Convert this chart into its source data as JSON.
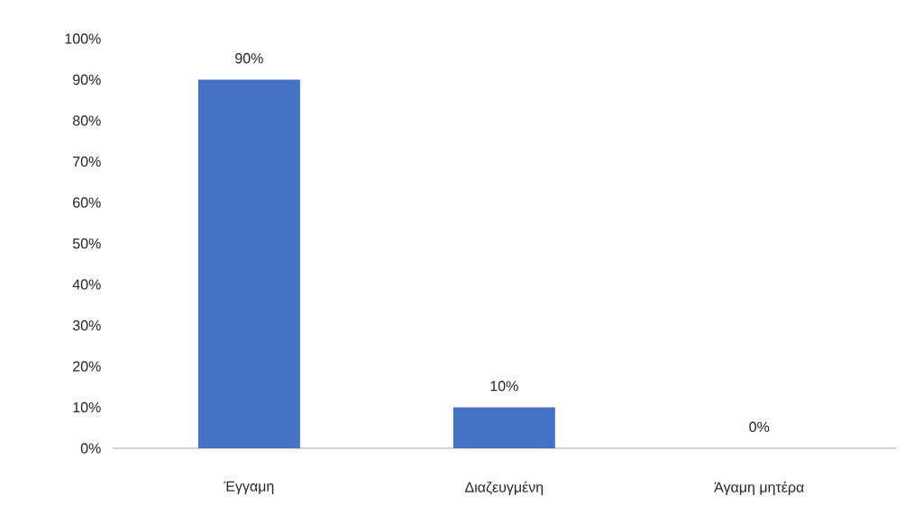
{
  "chart_data": {
    "type": "bar",
    "categories": [
      "Έγγαμη",
      "Διαζευγμένη",
      "Άγαμη μητέρα"
    ],
    "values": [
      90,
      10,
      0
    ],
    "color": "#4472c4",
    "value_labels": [
      "90%",
      "10%",
      "0%"
    ],
    "ylim": [
      0,
      100
    ],
    "yticks": [
      {
        "value": 0,
        "label": "0%"
      },
      {
        "value": 10,
        "label": "10%"
      },
      {
        "value": 20,
        "label": "20%"
      },
      {
        "value": 30,
        "label": "30%"
      },
      {
        "value": 40,
        "label": "40%"
      },
      {
        "value": 50,
        "label": "50%"
      },
      {
        "value": 60,
        "label": "60%"
      },
      {
        "value": 70,
        "label": "70%"
      },
      {
        "value": 80,
        "label": "80%"
      },
      {
        "value": 90,
        "label": "90%"
      },
      {
        "value": 100,
        "label": "100%"
      }
    ],
    "grid": false
  }
}
